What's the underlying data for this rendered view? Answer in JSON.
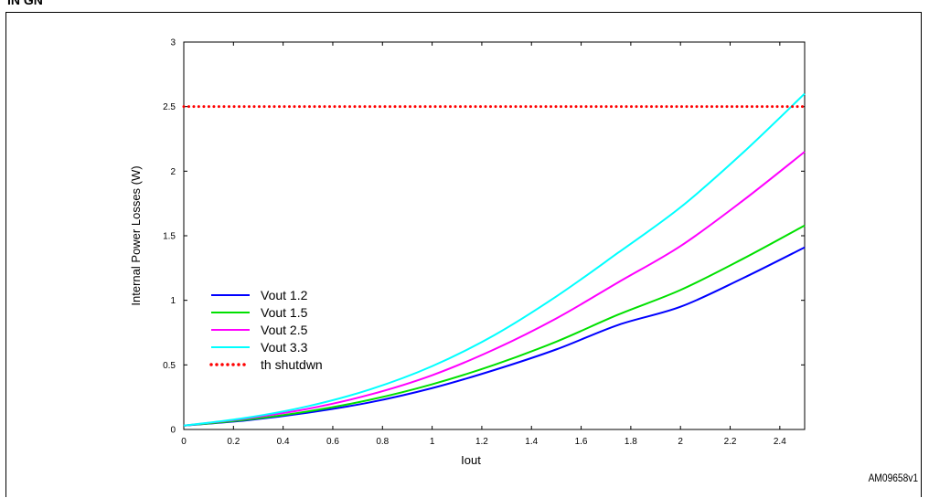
{
  "header": {
    "title_fragment": "IN  GN"
  },
  "footnote": "AM09658v1",
  "chart_data": {
    "type": "line",
    "title": "",
    "xlabel": "Iout",
    "ylabel": "Internal Power Losses (W)",
    "xlim": [
      0,
      2.5
    ],
    "ylim": [
      0,
      3
    ],
    "xticks": [
      "0",
      "0.2",
      "0.4",
      "0.6",
      "0.8",
      "1",
      "1.2",
      "1.4",
      "1.6",
      "1.8",
      "2",
      "2.2",
      "2.4"
    ],
    "xtick_values": [
      0,
      0.2,
      0.4,
      0.6,
      0.8,
      1,
      1.2,
      1.4,
      1.6,
      1.8,
      2,
      2.2,
      2.4
    ],
    "yticks": [
      "0",
      "0.5",
      "1",
      "1.5",
      "2",
      "2.5",
      "3"
    ],
    "ytick_values": [
      0,
      0.5,
      1,
      1.5,
      2,
      2.5,
      3
    ],
    "grid": false,
    "legend_position": "lower-left",
    "x": [
      0,
      0.25,
      0.5,
      0.75,
      1.0,
      1.25,
      1.5,
      1.75,
      2.0,
      2.25,
      2.5
    ],
    "series": [
      {
        "name": "Vout 1.2",
        "color": "#0000ff",
        "style": "solid",
        "values": [
          0.03,
          0.07,
          0.13,
          0.21,
          0.32,
          0.46,
          0.62,
          0.81,
          0.95,
          1.17,
          1.41
        ]
      },
      {
        "name": "Vout 1.5",
        "color": "#00e000",
        "style": "solid",
        "values": [
          0.03,
          0.075,
          0.14,
          0.23,
          0.35,
          0.5,
          0.68,
          0.89,
          1.08,
          1.32,
          1.58
        ]
      },
      {
        "name": "Vout 2.5",
        "color": "#ff00ff",
        "style": "solid",
        "values": [
          0.03,
          0.085,
          0.16,
          0.27,
          0.42,
          0.62,
          0.86,
          1.14,
          1.42,
          1.77,
          2.15
        ]
      },
      {
        "name": "Vout 3.3",
        "color": "#00ffff",
        "style": "solid",
        "values": [
          0.03,
          0.09,
          0.18,
          0.31,
          0.49,
          0.73,
          1.03,
          1.37,
          1.72,
          2.14,
          2.6
        ]
      },
      {
        "name": "th shutdwn",
        "color": "#ff0000",
        "style": "dotted",
        "values": [
          2.5,
          2.5,
          2.5,
          2.5,
          2.5,
          2.5,
          2.5,
          2.5,
          2.5,
          2.5,
          2.5
        ]
      }
    ]
  }
}
